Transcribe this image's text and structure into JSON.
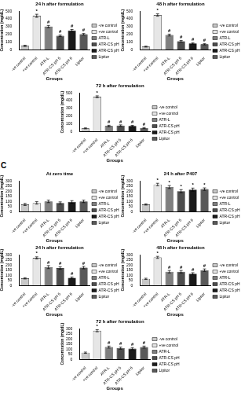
{
  "chart_data": [
    {
      "type": "bar",
      "title": "24 h after formulation",
      "x_label": "Groups",
      "y_label": "Concentration (mg/dL)",
      "categories": [
        "-ve control",
        "+ve control",
        "ATR-L",
        "ATR-CS pH 5",
        "ATR-CS pH 6",
        "Lipitor"
      ],
      "values": [
        50,
        440,
        300,
        180,
        250,
        200
      ],
      "errors": [
        8,
        20,
        15,
        10,
        12,
        10
      ],
      "annotations": [
        null,
        "*",
        "#",
        "#",
        "#",
        "#"
      ],
      "colors": [
        "#c8c8c8",
        "#e6e6e6",
        "#7f7f7f",
        "#4d4d4d",
        "#1a1a1a",
        "#595959"
      ],
      "ylim": [
        0,
        500
      ],
      "yticks": [
        0,
        100,
        200,
        300,
        400,
        500
      ],
      "grid": false,
      "legend": "right"
    },
    {
      "type": "bar",
      "title": "48 h after formulation",
      "x_label": "Groups",
      "y_label": "Concentration (mg/dL)",
      "categories": [
        "-ve control",
        "+ve control",
        "ATR-L",
        "ATR-CS pH 5",
        "ATR-CS pH 6",
        "Lipitor"
      ],
      "values": [
        40,
        450,
        190,
        110,
        80,
        70
      ],
      "errors": [
        6,
        15,
        12,
        10,
        8,
        8
      ],
      "annotations": [
        null,
        "*",
        "#",
        "#",
        "#",
        "#"
      ],
      "colors": [
        "#c8c8c8",
        "#e6e6e6",
        "#7f7f7f",
        "#4d4d4d",
        "#1a1a1a",
        "#595959"
      ],
      "ylim": [
        0,
        500
      ],
      "yticks": [
        0,
        100,
        200,
        300,
        400,
        500
      ],
      "grid": false,
      "legend": "right"
    },
    {
      "type": "bar",
      "title": "72 h after formulation",
      "x_label": "Groups",
      "y_label": "Concentration (mg/dL)",
      "categories": [
        "-ve control",
        "+ve control",
        "ATR-L",
        "ATR-CS pH 5",
        "ATR-CS pH 6",
        "Lipitor"
      ],
      "values": [
        40,
        450,
        70,
        75,
        70,
        45
      ],
      "errors": [
        6,
        12,
        10,
        10,
        8,
        6
      ],
      "annotations": [
        null,
        "*",
        "#",
        "#",
        "#",
        "#"
      ],
      "colors": [
        "#c8c8c8",
        "#e6e6e6",
        "#7f7f7f",
        "#4d4d4d",
        "#1a1a1a",
        "#595959"
      ],
      "ylim": [
        0,
        500
      ],
      "yticks": [
        0,
        100,
        200,
        300,
        400,
        500
      ],
      "grid": false,
      "legend": "right"
    },
    {
      "type": "bar",
      "panel": "C",
      "title": "At zero time",
      "x_label": "Groups",
      "y_label": "Concentration (mg/dL)",
      "categories": [
        "-ve control",
        "+ve control",
        "ATR-L",
        "ATR-CS pH 5",
        "ATR-CS pH 6",
        "Lipitor"
      ],
      "values": [
        70,
        85,
        100,
        85,
        95,
        100
      ],
      "errors": [
        10,
        12,
        12,
        10,
        12,
        12
      ],
      "annotations": [
        null,
        null,
        null,
        null,
        null,
        null
      ],
      "colors": [
        "#c8c8c8",
        "#e6e6e6",
        "#7f7f7f",
        "#4d4d4d",
        "#1a1a1a",
        "#595959"
      ],
      "ylim": [
        0,
        300
      ],
      "yticks": [
        0,
        50,
        100,
        150,
        200,
        250,
        300
      ],
      "grid": false,
      "legend": "right"
    },
    {
      "type": "bar",
      "title": "24 h after P407",
      "x_label": "Groups",
      "y_label": "Concentration (mg/dL)",
      "categories": [
        "-ve control",
        "+ve control",
        "ATR-L",
        "ATR-CS pH 5",
        "ATR-CS pH 6",
        "Lipitor"
      ],
      "values": [
        70,
        265,
        240,
        200,
        215,
        220
      ],
      "errors": [
        6,
        12,
        15,
        15,
        15,
        12
      ],
      "annotations": [
        null,
        "*",
        "*",
        "*",
        "*",
        "*"
      ],
      "colors": [
        "#c8c8c8",
        "#e6e6e6",
        "#7f7f7f",
        "#4d4d4d",
        "#1a1a1a",
        "#595959"
      ],
      "ylim": [
        0,
        300
      ],
      "yticks": [
        0,
        50,
        100,
        150,
        200,
        250,
        300
      ],
      "grid": false,
      "legend": "right"
    },
    {
      "type": "bar",
      "title": "24 h after formulation",
      "x_label": "Groups",
      "y_label": "Concentration (mg/dL)",
      "categories": [
        "-ve control",
        "+ve control",
        "ATR-L",
        "ATR-CS pH 5",
        "ATR-CS pH 6",
        "Lipitor"
      ],
      "values": [
        70,
        270,
        180,
        170,
        75,
        175
      ],
      "errors": [
        6,
        10,
        15,
        12,
        8,
        12
      ],
      "annotations": [
        null,
        "*",
        "#",
        "#",
        "#",
        "#"
      ],
      "colors": [
        "#c8c8c8",
        "#e6e6e6",
        "#7f7f7f",
        "#4d4d4d",
        "#1a1a1a",
        "#595959"
      ],
      "ylim": [
        0,
        300
      ],
      "yticks": [
        0,
        50,
        100,
        150,
        200,
        250,
        300
      ],
      "grid": false,
      "legend": "right"
    },
    {
      "type": "bar",
      "title": "48 h after formulation",
      "x_label": "Groups",
      "y_label": "Concentration (mg/dL)",
      "categories": [
        "-ve control",
        "+ve control",
        "ATR-L",
        "ATR-CS pH 5",
        "ATR-CS pH 6",
        "Lipitor"
      ],
      "values": [
        65,
        275,
        135,
        135,
        115,
        150
      ],
      "errors": [
        6,
        10,
        12,
        12,
        10,
        12
      ],
      "annotations": [
        null,
        "*",
        "#",
        "#",
        "#",
        "#"
      ],
      "colors": [
        "#c8c8c8",
        "#e6e6e6",
        "#7f7f7f",
        "#4d4d4d",
        "#1a1a1a",
        "#595959"
      ],
      "ylim": [
        0,
        300
      ],
      "yticks": [
        0,
        50,
        100,
        150,
        200,
        250,
        300
      ],
      "grid": false,
      "legend": "right"
    },
    {
      "type": "bar",
      "title": "72 h after formulation",
      "x_label": "Groups",
      "y_label": "Concentration (mg/dL)",
      "categories": [
        "-ve control",
        "+ve control",
        "ATR-L",
        "ATR-CS pH 5",
        "ATR-CS pH 6",
        "Lipitor"
      ],
      "values": [
        65,
        280,
        120,
        110,
        105,
        120
      ],
      "errors": [
        6,
        10,
        10,
        10,
        10,
        10
      ],
      "annotations": [
        null,
        "*",
        "#",
        "#",
        "#",
        "#"
      ],
      "colors": [
        "#c8c8c8",
        "#e6e6e6",
        "#7f7f7f",
        "#4d4d4d",
        "#1a1a1a",
        "#595959"
      ],
      "ylim": [
        0,
        300
      ],
      "yticks": [
        0,
        50,
        100,
        150,
        200,
        250,
        300
      ],
      "grid": false,
      "legend": "right"
    }
  ]
}
